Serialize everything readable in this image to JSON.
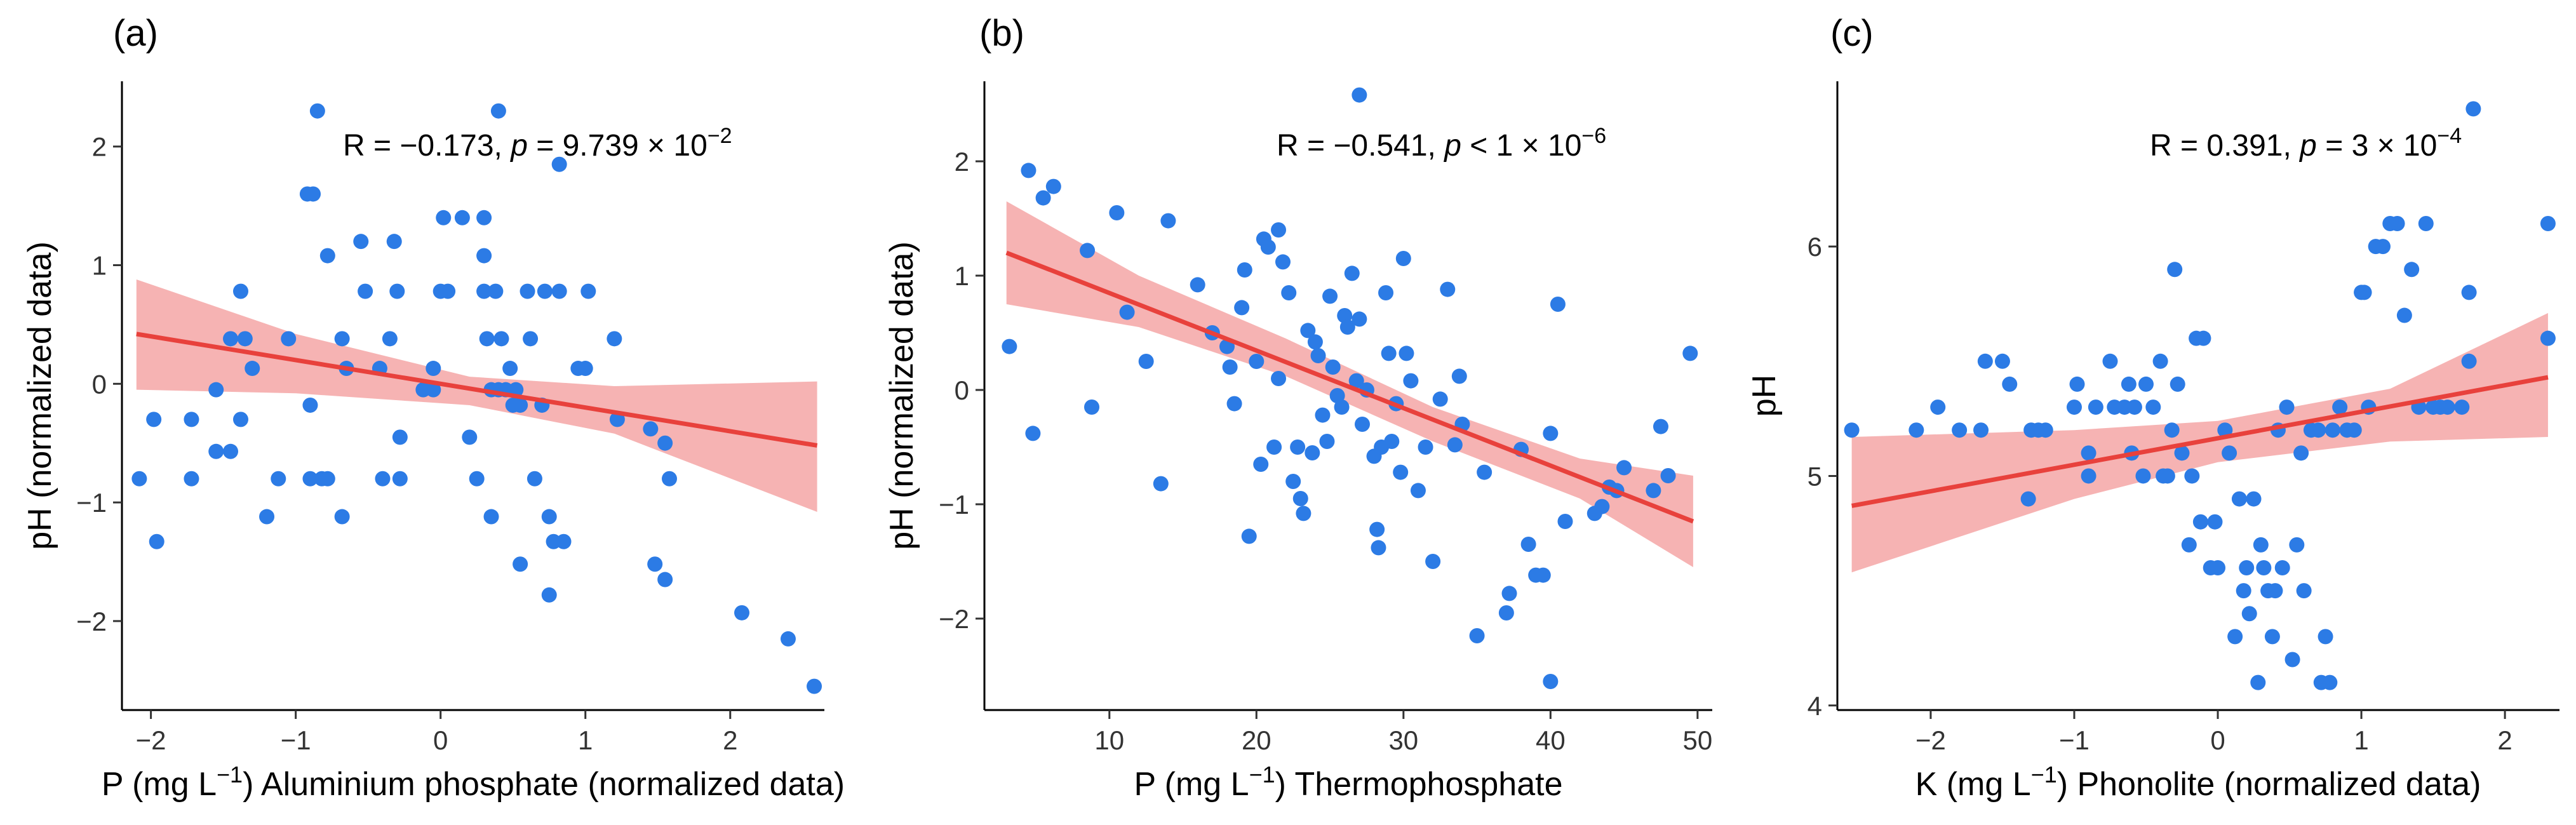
{
  "chart_data": [
    {
      "type": "scatter",
      "panel_label": "(a)",
      "xlabel": {
        "pre": "P (mg L",
        "sup": "−1",
        "post": ") Aluminium phosphate (normalized data)"
      },
      "ylabel": "pH (normalized data)",
      "xlim": [
        -2.2,
        2.65
      ],
      "ylim": [
        -2.75,
        2.55
      ],
      "xticks": [
        -2,
        -1,
        0,
        1,
        2
      ],
      "yticks": [
        -2,
        -1,
        0,
        1,
        2
      ],
      "tick_labels_x": [
        "−2",
        "−1",
        "0",
        "1",
        "2"
      ],
      "tick_labels_y": [
        "−2",
        "−1",
        "0",
        "1",
        "2"
      ],
      "annotation": {
        "r_text": "R = −0.173,",
        "p_label": "p",
        "p_text": " = 9.739 × 10",
        "p_exp": "−2"
      },
      "point_color": "#2C7BE5",
      "line_color": "#E8413C",
      "band_color": "#F4A6A6",
      "fit": {
        "x1": -2.1,
        "y1": 0.42,
        "x2": 2.6,
        "y2": -0.52
      },
      "band": {
        "upper": [
          [
            -2.1,
            0.88
          ],
          [
            -1.0,
            0.42
          ],
          [
            0.2,
            0.06
          ],
          [
            1.2,
            -0.02
          ],
          [
            2.6,
            0.02
          ]
        ],
        "lower": [
          [
            2.6,
            -1.08
          ],
          [
            1.2,
            -0.42
          ],
          [
            0.2,
            -0.18
          ],
          [
            -1.0,
            -0.08
          ],
          [
            -2.1,
            -0.05
          ]
        ]
      },
      "points": [
        [
          -2.08,
          -0.8
        ],
        [
          -1.98,
          -0.3
        ],
        [
          -1.96,
          -1.33
        ],
        [
          -1.72,
          -0.8
        ],
        [
          -1.72,
          -0.3
        ],
        [
          -1.55,
          -0.05
        ],
        [
          -1.55,
          -0.57
        ],
        [
          -1.45,
          0.38
        ],
        [
          -1.45,
          -0.57
        ],
        [
          -1.38,
          -0.3
        ],
        [
          -1.38,
          0.78
        ],
        [
          -1.35,
          0.38
        ],
        [
          -1.3,
          0.13
        ],
        [
          -1.2,
          -1.12
        ],
        [
          -1.12,
          -0.8
        ],
        [
          -1.05,
          0.38
        ],
        [
          -0.92,
          1.6
        ],
        [
          -0.88,
          1.6
        ],
        [
          -0.85,
          2.3
        ],
        [
          -0.82,
          -0.8
        ],
        [
          -0.9,
          -0.8
        ],
        [
          -0.9,
          -0.18
        ],
        [
          -0.78,
          1.08
        ],
        [
          -0.78,
          -0.8
        ],
        [
          -0.68,
          0.38
        ],
        [
          -0.68,
          -1.12
        ],
        [
          -0.65,
          0.13
        ],
        [
          -0.55,
          1.2
        ],
        [
          -0.52,
          0.78
        ],
        [
          -0.42,
          0.13
        ],
        [
          -0.4,
          -0.8
        ],
        [
          -0.35,
          0.38
        ],
        [
          -0.32,
          1.2
        ],
        [
          -0.3,
          0.78
        ],
        [
          -0.28,
          -0.45
        ],
        [
          -0.28,
          -0.8
        ],
        [
          -0.12,
          -0.05
        ],
        [
          -0.05,
          0.13
        ],
        [
          -0.05,
          -0.05
        ],
        [
          0,
          0.78
        ],
        [
          0.02,
          1.4
        ],
        [
          0.05,
          0.78
        ],
        [
          0.15,
          1.4
        ],
        [
          0.2,
          -0.45
        ],
        [
          0.25,
          -0.8
        ],
        [
          0.3,
          1.4
        ],
        [
          0.3,
          1.08
        ],
        [
          0.3,
          0.78
        ],
        [
          0.32,
          0.38
        ],
        [
          0.35,
          -0.05
        ],
        [
          0.35,
          -1.12
        ],
        [
          0.38,
          0.78
        ],
        [
          0.4,
          2.3
        ],
        [
          0.4,
          -0.05
        ],
        [
          0.42,
          0.38
        ],
        [
          0.45,
          -0.05
        ],
        [
          0.48,
          0.13
        ],
        [
          0.5,
          -0.18
        ],
        [
          0.52,
          -0.05
        ],
        [
          0.55,
          -0.18
        ],
        [
          0.55,
          -1.52
        ],
        [
          0.6,
          0.78
        ],
        [
          0.62,
          0.38
        ],
        [
          0.65,
          -0.8
        ],
        [
          0.7,
          -0.18
        ],
        [
          0.72,
          0.78
        ],
        [
          0.75,
          -1.12
        ],
        [
          0.75,
          -1.78
        ],
        [
          0.78,
          -1.33
        ],
        [
          0.82,
          0.78
        ],
        [
          0.82,
          1.85
        ],
        [
          0.85,
          -1.33
        ],
        [
          0.95,
          0.13
        ],
        [
          1.0,
          0.13
        ],
        [
          1.02,
          0.78
        ],
        [
          1.2,
          0.38
        ],
        [
          1.22,
          -0.3
        ],
        [
          1.45,
          -0.38
        ],
        [
          1.48,
          -1.52
        ],
        [
          1.55,
          -0.5
        ],
        [
          1.55,
          -1.65
        ],
        [
          1.58,
          -0.8
        ],
        [
          2.08,
          -1.93
        ],
        [
          2.4,
          -2.15
        ],
        [
          2.58,
          -2.55
        ]
      ]
    },
    {
      "type": "scatter",
      "panel_label": "(b)",
      "xlabel": {
        "pre": "P (mg L",
        "sup": "−1",
        "post": ") Thermophosphate"
      },
      "ylabel": "pH (normalized data)",
      "xlim": [
        1.5,
        51
      ],
      "ylim": [
        -2.8,
        2.7
      ],
      "xticks": [
        10,
        20,
        30,
        40,
        50
      ],
      "yticks": [
        -2,
        -1,
        0,
        1,
        2
      ],
      "tick_labels_x": [
        "10",
        "20",
        "30",
        "40",
        "50"
      ],
      "tick_labels_y": [
        "−2",
        "−1",
        "0",
        "1",
        "2"
      ],
      "annotation": {
        "r_text": "R = −0.541,",
        "p_label": "p",
        "p_text": " < 1 × 10",
        "p_exp": "−6"
      },
      "point_color": "#2C7BE5",
      "line_color": "#E8413C",
      "band_color": "#F4A6A6",
      "fit": {
        "x1": 3.0,
        "y1": 1.2,
        "x2": 49.7,
        "y2": -1.15
      },
      "band": {
        "upper": [
          [
            3.0,
            1.65
          ],
          [
            12,
            1.0
          ],
          [
            22,
            0.45
          ],
          [
            32,
            -0.15
          ],
          [
            42,
            -0.6
          ],
          [
            49.7,
            -0.75
          ]
        ],
        "lower": [
          [
            49.7,
            -1.55
          ],
          [
            42,
            -0.95
          ],
          [
            32,
            -0.45
          ],
          [
            22,
            0.12
          ],
          [
            12,
            0.55
          ],
          [
            3.0,
            0.75
          ]
        ]
      },
      "points": [
        [
          3.2,
          0.38
        ],
        [
          4.5,
          1.92
        ],
        [
          4.8,
          -0.38
        ],
        [
          5.5,
          1.68
        ],
        [
          6.2,
          1.78
        ],
        [
          8.5,
          1.22
        ],
        [
          8.8,
          -0.15
        ],
        [
          10.5,
          1.55
        ],
        [
          11.2,
          0.68
        ],
        [
          12.5,
          0.25
        ],
        [
          13.5,
          -0.82
        ],
        [
          14,
          1.48
        ],
        [
          16,
          0.92
        ],
        [
          17,
          0.5
        ],
        [
          18,
          0.38
        ],
        [
          18.2,
          0.2
        ],
        [
          18.5,
          -0.12
        ],
        [
          19,
          0.72
        ],
        [
          19.2,
          1.05
        ],
        [
          19.5,
          -1.28
        ],
        [
          20,
          0.25
        ],
        [
          20.3,
          -0.65
        ],
        [
          20.5,
          1.32
        ],
        [
          20.8,
          1.25
        ],
        [
          21.2,
          -0.5
        ],
        [
          21.5,
          1.4
        ],
        [
          21.5,
          0.1
        ],
        [
          21.8,
          1.12
        ],
        [
          22.2,
          0.85
        ],
        [
          22.5,
          -0.8
        ],
        [
          22.8,
          -0.5
        ],
        [
          23,
          -0.95
        ],
        [
          23.2,
          -1.08
        ],
        [
          23.5,
          0.52
        ],
        [
          23.8,
          -0.55
        ],
        [
          24,
          0.42
        ],
        [
          24.2,
          0.3
        ],
        [
          24.5,
          -0.22
        ],
        [
          24.8,
          -0.45
        ],
        [
          25,
          0.82
        ],
        [
          25.2,
          0.2
        ],
        [
          25.5,
          -0.05
        ],
        [
          25.8,
          -0.15
        ],
        [
          26,
          0.65
        ],
        [
          26.2,
          0.55
        ],
        [
          26.5,
          1.02
        ],
        [
          26.8,
          0.08
        ],
        [
          27,
          0.62
        ],
        [
          27,
          2.58
        ],
        [
          27.2,
          -0.3
        ],
        [
          27.5,
          0.0
        ],
        [
          28,
          -0.58
        ],
        [
          28.2,
          -1.22
        ],
        [
          28.3,
          -1.38
        ],
        [
          28.5,
          -0.5
        ],
        [
          28.8,
          0.85
        ],
        [
          29,
          0.32
        ],
        [
          29.2,
          -0.45
        ],
        [
          29.5,
          -0.12
        ],
        [
          29.8,
          -0.72
        ],
        [
          30,
          1.15
        ],
        [
          30.2,
          0.32
        ],
        [
          30.5,
          0.08
        ],
        [
          31,
          -0.88
        ],
        [
          31.5,
          -0.5
        ],
        [
          32,
          -1.5
        ],
        [
          32.5,
          -0.08
        ],
        [
          33,
          0.88
        ],
        [
          33.5,
          -0.48
        ],
        [
          33.8,
          0.12
        ],
        [
          34,
          -0.3
        ],
        [
          35,
          -2.15
        ],
        [
          35.5,
          -0.72
        ],
        [
          37,
          -1.95
        ],
        [
          37.2,
          -1.78
        ],
        [
          38,
          -0.52
        ],
        [
          38.5,
          -1.35
        ],
        [
          39,
          -1.62
        ],
        [
          39.5,
          -1.62
        ],
        [
          40,
          -2.55
        ],
        [
          40,
          -0.38
        ],
        [
          40.5,
          0.75
        ],
        [
          41,
          -1.15
        ],
        [
          43,
          -1.08
        ],
        [
          43.5,
          -1.02
        ],
        [
          44,
          -0.85
        ],
        [
          44.5,
          -0.88
        ],
        [
          45,
          -0.68
        ],
        [
          47,
          -0.88
        ],
        [
          47.5,
          -0.32
        ],
        [
          48,
          -0.75
        ],
        [
          49.5,
          0.32
        ]
      ]
    },
    {
      "type": "scatter",
      "panel_label": "(c)",
      "xlabel": {
        "pre": "K (mg L",
        "sup": "−1",
        "post": ") Phonolite (normalized data)"
      },
      "ylabel": "pH",
      "xlim": [
        -2.65,
        2.38
      ],
      "ylim": [
        3.98,
        6.72
      ],
      "xticks": [
        -2,
        -1,
        0,
        1,
        2
      ],
      "yticks": [
        4,
        5,
        6
      ],
      "tick_labels_x": [
        "−2",
        "−1",
        "0",
        "1",
        "2"
      ],
      "tick_labels_y": [
        "4",
        "5",
        "6"
      ],
      "annotation": {
        "r_text": "R = 0.391,",
        "p_label": "p",
        "p_text": " = 3 × 10",
        "p_exp": "−4"
      },
      "point_color": "#2C7BE5",
      "line_color": "#E8413C",
      "band_color": "#F4A6A6",
      "fit": {
        "x1": -2.55,
        "y1": 4.87,
        "x2": 2.3,
        "y2": 5.43
      },
      "band": {
        "upper": [
          [
            -2.55,
            5.17
          ],
          [
            -1.0,
            5.2
          ],
          [
            0.0,
            5.24
          ],
          [
            1.2,
            5.38
          ],
          [
            2.3,
            5.71
          ]
        ],
        "lower": [
          [
            2.3,
            5.17
          ],
          [
            1.2,
            5.15
          ],
          [
            0.0,
            5.06
          ],
          [
            -1.0,
            4.9
          ],
          [
            -2.55,
            4.58
          ]
        ]
      },
      "points": [
        [
          -2.55,
          5.2
        ],
        [
          -2.1,
          5.2
        ],
        [
          -1.95,
          5.3
        ],
        [
          -1.8,
          5.2
        ],
        [
          -1.65,
          5.2
        ],
        [
          -1.62,
          5.5
        ],
        [
          -1.5,
          5.5
        ],
        [
          -1.45,
          5.4
        ],
        [
          -1.32,
          4.9
        ],
        [
          -1.3,
          5.2
        ],
        [
          -1.25,
          5.2
        ],
        [
          -1.2,
          5.2
        ],
        [
          -1.0,
          5.3
        ],
        [
          -0.98,
          5.4
        ],
        [
          -0.9,
          5.1
        ],
        [
          -0.9,
          5.0
        ],
        [
          -0.85,
          5.3
        ],
        [
          -0.75,
          5.5
        ],
        [
          -0.72,
          5.3
        ],
        [
          -0.65,
          5.3
        ],
        [
          -0.62,
          5.4
        ],
        [
          -0.6,
          5.1
        ],
        [
          -0.58,
          5.3
        ],
        [
          -0.52,
          5.0
        ],
        [
          -0.5,
          5.4
        ],
        [
          -0.45,
          5.3
        ],
        [
          -0.4,
          5.5
        ],
        [
          -0.38,
          5.0
        ],
        [
          -0.35,
          5.0
        ],
        [
          -0.32,
          5.2
        ],
        [
          -0.3,
          5.9
        ],
        [
          -0.28,
          5.4
        ],
        [
          -0.25,
          5.1
        ],
        [
          -0.2,
          4.7
        ],
        [
          -0.18,
          5.0
        ],
        [
          -0.15,
          5.6
        ],
        [
          -0.12,
          4.8
        ],
        [
          -0.1,
          5.6
        ],
        [
          -0.05,
          4.6
        ],
        [
          -0.02,
          4.8
        ],
        [
          0,
          4.6
        ],
        [
          0.05,
          5.2
        ],
        [
          0.08,
          5.1
        ],
        [
          0.12,
          4.3
        ],
        [
          0.15,
          4.9
        ],
        [
          0.18,
          4.5
        ],
        [
          0.2,
          4.6
        ],
        [
          0.22,
          4.4
        ],
        [
          0.25,
          4.9
        ],
        [
          0.28,
          4.1
        ],
        [
          0.3,
          4.7
        ],
        [
          0.32,
          4.6
        ],
        [
          0.35,
          4.5
        ],
        [
          0.38,
          4.3
        ],
        [
          0.4,
          4.5
        ],
        [
          0.42,
          5.2
        ],
        [
          0.45,
          4.6
        ],
        [
          0.48,
          5.3
        ],
        [
          0.52,
          4.2
        ],
        [
          0.55,
          4.7
        ],
        [
          0.58,
          5.1
        ],
        [
          0.6,
          4.5
        ],
        [
          0.65,
          5.2
        ],
        [
          0.7,
          5.2
        ],
        [
          0.72,
          4.1
        ],
        [
          0.75,
          4.3
        ],
        [
          0.78,
          4.1
        ],
        [
          0.8,
          5.2
        ],
        [
          0.85,
          5.3
        ],
        [
          0.9,
          5.2
        ],
        [
          0.95,
          5.2
        ],
        [
          1.0,
          5.8
        ],
        [
          1.02,
          5.8
        ],
        [
          1.05,
          5.3
        ],
        [
          1.1,
          6.0
        ],
        [
          1.15,
          6.0
        ],
        [
          1.2,
          6.1
        ],
        [
          1.25,
          6.1
        ],
        [
          1.3,
          5.7
        ],
        [
          1.35,
          5.9
        ],
        [
          1.4,
          5.3
        ],
        [
          1.45,
          6.1
        ],
        [
          1.5,
          5.3
        ],
        [
          1.55,
          5.3
        ],
        [
          1.6,
          5.3
        ],
        [
          1.7,
          5.3
        ],
        [
          1.75,
          5.5
        ],
        [
          1.75,
          5.8
        ],
        [
          1.78,
          6.6
        ],
        [
          2.3,
          6.1
        ],
        [
          2.3,
          5.6
        ]
      ]
    }
  ]
}
